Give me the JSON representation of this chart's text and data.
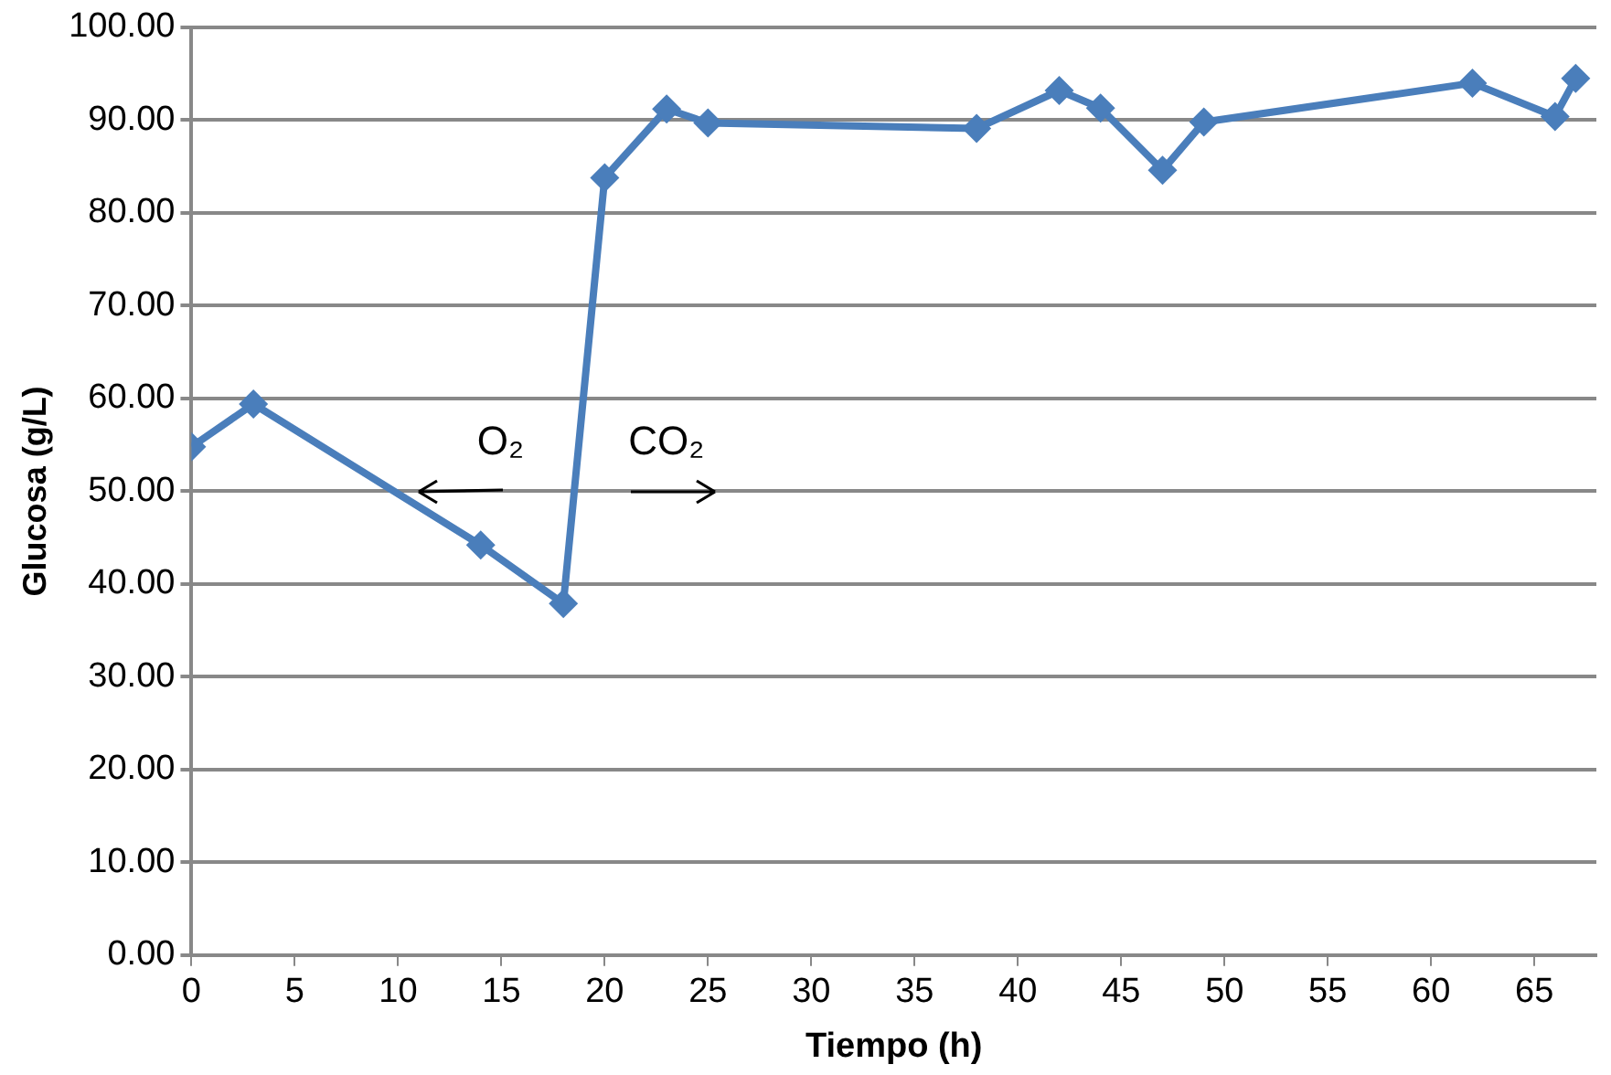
{
  "chart_data": {
    "type": "line",
    "xlabel": "Tiempo (h)",
    "ylabel": "Glucosa (g/L)",
    "x": [
      0,
      3,
      14,
      18,
      20,
      23,
      25,
      38,
      42,
      44,
      47,
      49,
      62,
      66,
      67
    ],
    "series": [
      {
        "color": "#4a7ebb",
        "values": [
          54.8,
          59.4,
          44.2,
          37.9,
          83.8,
          91.2,
          89.7,
          89.1,
          93.2,
          91.3,
          84.6,
          89.8,
          94.0,
          90.4,
          94.5
        ]
      }
    ],
    "xlim": [
      0,
      68
    ],
    "xticks": [
      0,
      5,
      10,
      15,
      20,
      25,
      30,
      35,
      40,
      45,
      50,
      55,
      60,
      65
    ],
    "ylim": [
      0,
      100
    ],
    "yticks": [
      {
        "value": 0,
        "label": "0.00"
      },
      {
        "value": 10,
        "label": "10.00"
      },
      {
        "value": 20,
        "label": "20.00"
      },
      {
        "value": 30,
        "label": "30.00"
      },
      {
        "value": 40,
        "label": "40.00"
      },
      {
        "value": 50,
        "label": "50.00"
      },
      {
        "value": 60,
        "label": "60.00"
      },
      {
        "value": 70,
        "label": "70.00"
      },
      {
        "value": 80,
        "label": "80.00"
      },
      {
        "value": 90,
        "label": "90.00"
      },
      {
        "value": 100,
        "label": "100.00"
      }
    ],
    "grid": "y",
    "legend": false,
    "marker": "diamond",
    "line_style": "solid",
    "annotations": [
      "O₂",
      "CO₂"
    ]
  }
}
